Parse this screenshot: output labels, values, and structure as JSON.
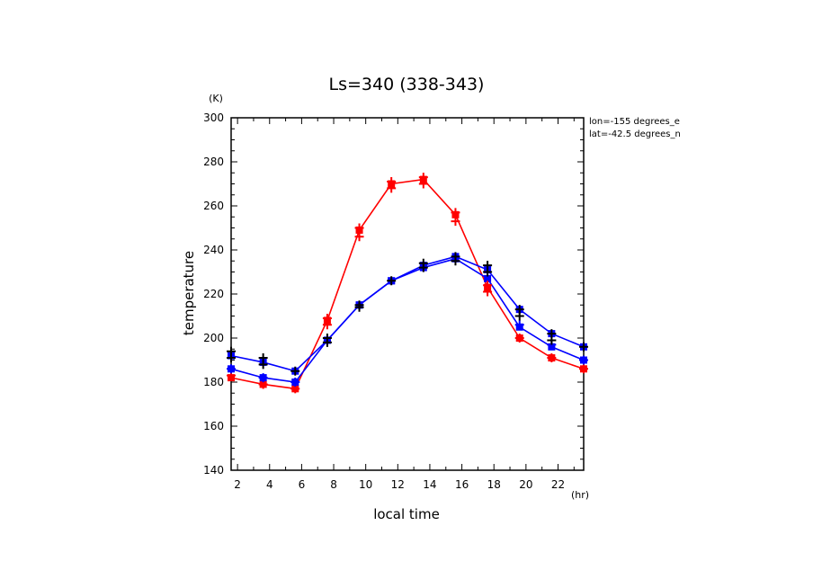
{
  "chart_data": {
    "type": "line",
    "title": "Ls=340 (338-343)",
    "xlabel": "local time",
    "ylabel": "temperature",
    "xunit": "(hr)",
    "yunit": "(K)",
    "xlim": [
      1.6,
      23.6
    ],
    "ylim": [
      140,
      300
    ],
    "xticks": [
      2,
      4,
      6,
      8,
      10,
      12,
      14,
      16,
      18,
      20,
      22
    ],
    "yticks": [
      140,
      160,
      180,
      200,
      220,
      240,
      260,
      280,
      300
    ],
    "annotations": [
      "lon=-155 degrees_e",
      "lat=-42.5 degrees_n"
    ],
    "x": [
      1.6,
      3.6,
      5.6,
      7.6,
      9.6,
      11.6,
      13.6,
      15.6,
      17.6,
      19.6,
      21.6,
      23.6
    ],
    "series": [
      {
        "color": "#ff0000",
        "values": [
          182,
          179,
          177,
          208,
          249,
          270,
          272,
          256,
          223,
          200,
          191,
          186
        ]
      },
      {
        "color": "#0000ff",
        "values": [
          186,
          182,
          180,
          199,
          215,
          226,
          232,
          236,
          227,
          205,
          196,
          190
        ]
      },
      {
        "color": "#0000ff",
        "values": [
          192,
          189,
          185,
          199,
          215,
          226,
          233,
          237,
          231,
          213,
          202,
          196
        ]
      }
    ],
    "observations": [
      {
        "color": "#ff0000",
        "points": [
          [
            1.6,
            183
          ],
          [
            3.6,
            179
          ],
          [
            5.6,
            177
          ],
          [
            7.6,
            209
          ],
          [
            7.6,
            206
          ],
          [
            9.6,
            250
          ],
          [
            9.6,
            246
          ],
          [
            11.6,
            271
          ],
          [
            11.6,
            268
          ],
          [
            13.6,
            273
          ],
          [
            13.6,
            270
          ],
          [
            15.6,
            257
          ],
          [
            15.6,
            253
          ],
          [
            17.6,
            224
          ],
          [
            17.6,
            221
          ],
          [
            19.6,
            200
          ],
          [
            21.6,
            191
          ],
          [
            23.6,
            186
          ]
        ]
      },
      {
        "color": "#0000ff",
        "points": [
          [
            1.6,
            186
          ],
          [
            3.6,
            182
          ],
          [
            5.6,
            180
          ],
          [
            19.6,
            206
          ],
          [
            21.6,
            197
          ],
          [
            23.6,
            190
          ]
        ]
      },
      {
        "color": "#000000",
        "points": [
          [
            1.6,
            194
          ],
          [
            1.6,
            191
          ],
          [
            3.6,
            191
          ],
          [
            3.6,
            188
          ],
          [
            5.6,
            185
          ],
          [
            7.6,
            200
          ],
          [
            7.6,
            198
          ],
          [
            9.6,
            215
          ],
          [
            9.6,
            214
          ],
          [
            11.6,
            226
          ],
          [
            13.6,
            234
          ],
          [
            13.6,
            232
          ],
          [
            15.6,
            237
          ],
          [
            15.6,
            235
          ],
          [
            17.6,
            233
          ],
          [
            17.6,
            230
          ],
          [
            19.6,
            213
          ],
          [
            19.6,
            210
          ],
          [
            21.6,
            202
          ],
          [
            21.6,
            199
          ],
          [
            23.6,
            196
          ]
        ]
      }
    ]
  }
}
